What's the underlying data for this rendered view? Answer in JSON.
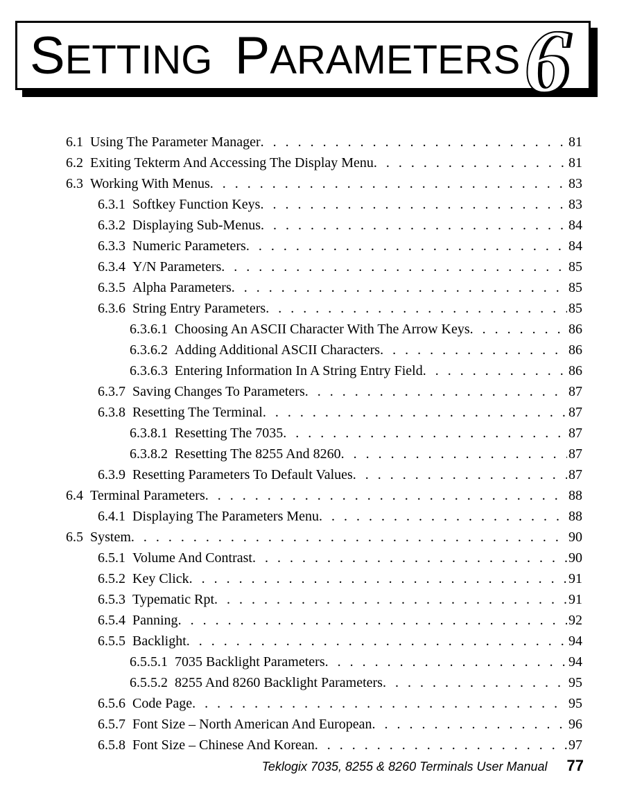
{
  "header": {
    "title_word1_cap": "S",
    "title_word1_rest": "ETTING",
    "title_word2_cap": "P",
    "title_word2_rest": "ARAMETERS"
  },
  "chapter_badge": {
    "glyph": "6"
  },
  "toc": {
    "dot_fill": " .  .  .  .  .  .  .  .  .  .  .  .  .  .  .  .  .  .  .  .  .  .  .  .  .  .  .  .  .  .  .  .  .  .  .  .  .  .  .  .  .  . ",
    "entries": [
      {
        "indent": 0,
        "num": "6.1",
        "label": "Using The Parameter Manager",
        "page": "81"
      },
      {
        "indent": 0,
        "num": "6.2",
        "label": "Exiting Tekterm And Accessing The Display Menu",
        "page": "81"
      },
      {
        "indent": 0,
        "num": "6.3",
        "label": "Working With Menus",
        "page": "83"
      },
      {
        "indent": 1,
        "num": "6.3.1",
        "label": "Softkey Function Keys",
        "page": "83"
      },
      {
        "indent": 1,
        "num": "6.3.2",
        "label": "Displaying Sub-Menus",
        "page": "84"
      },
      {
        "indent": 1,
        "num": "6.3.3",
        "label": "Numeric Parameters",
        "page": "84"
      },
      {
        "indent": 1,
        "num": "6.3.4",
        "label": "Y/N Parameters",
        "page": "85"
      },
      {
        "indent": 1,
        "num": "6.3.5",
        "label": "Alpha Parameters",
        "page": "85"
      },
      {
        "indent": 1,
        "num": "6.3.6",
        "label": "String Entry Parameters",
        "page": "85"
      },
      {
        "indent": 2,
        "num": "6.3.6.1",
        "label": "Choosing An ASCII Character With The Arrow Keys",
        "page": "86"
      },
      {
        "indent": 2,
        "num": "6.3.6.2",
        "label": "Adding Additional ASCII Characters",
        "page": "86"
      },
      {
        "indent": 2,
        "num": "6.3.6.3",
        "label": "Entering Information In A String Entry Field",
        "page": "86"
      },
      {
        "indent": 1,
        "num": "6.3.7",
        "label": "Saving Changes To Parameters",
        "page": "87"
      },
      {
        "indent": 1,
        "num": "6.3.8",
        "label": "Resetting The Terminal",
        "page": "87"
      },
      {
        "indent": 2,
        "num": "6.3.8.1",
        "label": "Resetting The 7035",
        "page": "87"
      },
      {
        "indent": 2,
        "num": "6.3.8.2",
        "label": "Resetting The 8255 And 8260",
        "page": "87"
      },
      {
        "indent": 1,
        "num": "6.3.9",
        "label": "Resetting Parameters To Default Values",
        "page": "87"
      },
      {
        "indent": 0,
        "num": "6.4",
        "label": "Terminal Parameters",
        "page": "88"
      },
      {
        "indent": 1,
        "num": "6.4.1",
        "label": "Displaying The Parameters Menu",
        "page": "88"
      },
      {
        "indent": 0,
        "num": "6.5",
        "label": "System",
        "page": "90"
      },
      {
        "indent": 1,
        "num": "6.5.1",
        "label": "Volume And Contrast",
        "page": "90"
      },
      {
        "indent": 1,
        "num": "6.5.2",
        "label": "Key Click",
        "page": "91"
      },
      {
        "indent": 1,
        "num": "6.5.3",
        "label": "Typematic Rpt",
        "page": "91"
      },
      {
        "indent": 1,
        "num": "6.5.4",
        "label": "Panning",
        "page": "92"
      },
      {
        "indent": 1,
        "num": "6.5.5",
        "label": "Backlight",
        "page": "94"
      },
      {
        "indent": 2,
        "num": "6.5.5.1",
        "label": "7035 Backlight Parameters",
        "page": "94"
      },
      {
        "indent": 2,
        "num": "6.5.5.2",
        "label": "8255 And 8260 Backlight Parameters",
        "page": "95"
      },
      {
        "indent": 1,
        "num": "6.5.6",
        "label": "Code Page",
        "page": "95"
      },
      {
        "indent": 1,
        "num": "6.5.7",
        "label": "Font Size – North American And European",
        "page": "96"
      },
      {
        "indent": 1,
        "num": "6.5.8",
        "label": "Font Size – Chinese And Korean",
        "page": "97"
      }
    ]
  },
  "footer": {
    "manual_title": "Teklogix 7035, 8255 & 8260 Terminals User Manual",
    "page_number": "77"
  }
}
